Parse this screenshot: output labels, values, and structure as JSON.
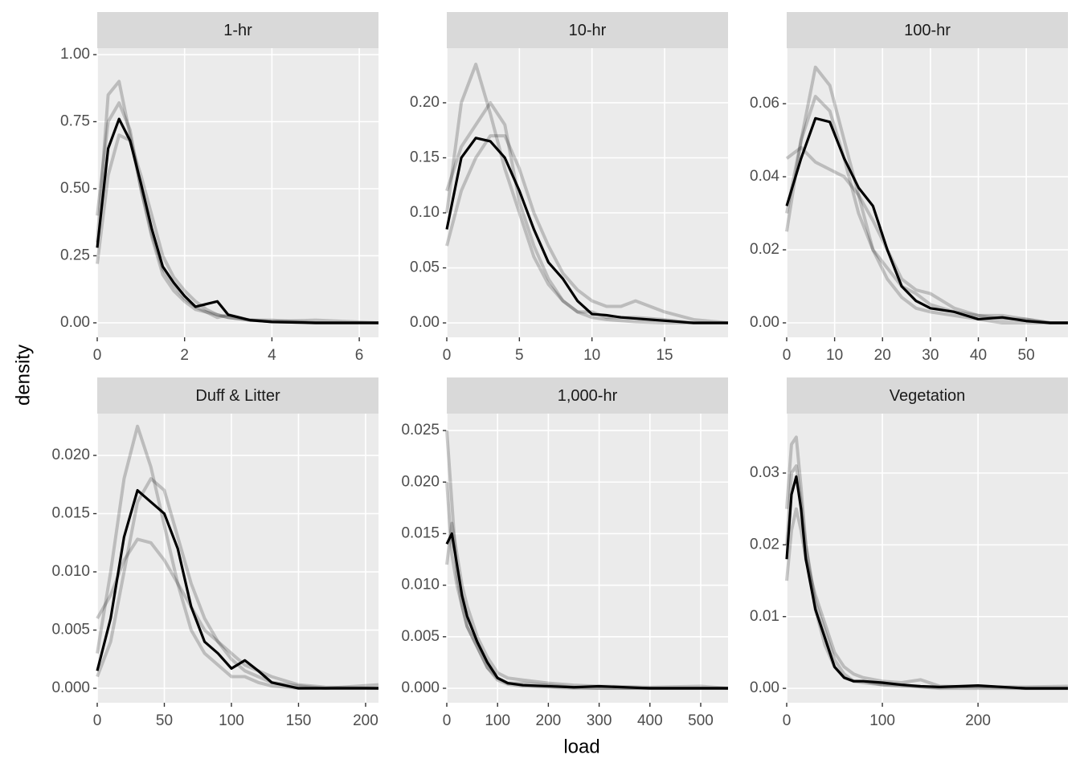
{
  "x_label": "load",
  "y_label": "density",
  "chart_data": [
    {
      "type": "line",
      "title": "1-hr",
      "line_alpha": 0.2,
      "x": [
        0,
        0.25,
        0.5,
        0.75,
        1,
        1.25,
        1.5,
        1.75,
        2,
        2.25,
        2.5,
        2.75,
        3,
        3.5,
        4,
        5,
        6.44
      ],
      "series": [
        {
          "color": "#000000",
          "values": [
            0.3,
            0.85,
            0.9,
            0.7,
            0.5,
            0.33,
            0.2,
            0.14,
            0.09,
            0.06,
            0.04,
            0.03,
            0.02,
            0.01,
            0.005,
            0,
            0
          ]
        },
        {
          "color": "#000000",
          "values": [
            0.22,
            0.55,
            0.7,
            0.68,
            0.55,
            0.4,
            0.25,
            0.17,
            0.12,
            0.08,
            0.05,
            0.03,
            0.02,
            0.01,
            0.005,
            0.01,
            0
          ]
        },
        {
          "color": "#000000",
          "values": [
            0.4,
            0.75,
            0.82,
            0.72,
            0.5,
            0.32,
            0.18,
            0.12,
            0.08,
            0.05,
            0.04,
            0.02,
            0.03,
            0.01,
            0.01,
            0,
            0
          ]
        },
        {
          "color": "#000000",
          "highlight": true,
          "values": [
            0.28,
            0.65,
            0.76,
            0.68,
            0.52,
            0.35,
            0.21,
            0.15,
            0.1,
            0.06,
            0.07,
            0.08,
            0.03,
            0.01,
            0.003,
            0,
            0
          ]
        }
      ],
      "xlim": [
        0,
        6.44
      ],
      "xticks": [
        0,
        2,
        4,
        6
      ],
      "ylim": [
        -0.054,
        1.024
      ],
      "yticks": [
        {
          "value": 0,
          "label": "0.00"
        },
        {
          "value": 0.25,
          "label": "0.25"
        },
        {
          "value": 0.5,
          "label": "0.50"
        },
        {
          "value": 0.75,
          "label": "0.75"
        },
        {
          "value": 1,
          "label": "1.00"
        }
      ]
    },
    {
      "type": "line",
      "title": "10-hr",
      "line_alpha": 0.2,
      "x": [
        0,
        1,
        2,
        3,
        4,
        5,
        6,
        7,
        8,
        9,
        10,
        11,
        12,
        13,
        15,
        17,
        19.37
      ],
      "series": [
        {
          "color": "#000000",
          "values": [
            0.1,
            0.2,
            0.235,
            0.19,
            0.14,
            0.1,
            0.06,
            0.035,
            0.02,
            0.01,
            0.005,
            0.003,
            0.002,
            0.001,
            0,
            0,
            0
          ]
        },
        {
          "color": "#000000",
          "values": [
            0.07,
            0.12,
            0.15,
            0.17,
            0.17,
            0.14,
            0.1,
            0.07,
            0.045,
            0.03,
            0.02,
            0.015,
            0.015,
            0.02,
            0.01,
            0.003,
            0
          ]
        },
        {
          "color": "#000000",
          "values": [
            0.12,
            0.16,
            0.18,
            0.2,
            0.18,
            0.11,
            0.07,
            0.04,
            0.02,
            0.01,
            0.01,
            0.005,
            0.005,
            0.005,
            0.003,
            0,
            0
          ]
        },
        {
          "color": "#000000",
          "highlight": true,
          "values": [
            0.085,
            0.15,
            0.168,
            0.165,
            0.15,
            0.12,
            0.085,
            0.055,
            0.04,
            0.02,
            0.008,
            0.007,
            0.005,
            0.004,
            0.002,
            0,
            0
          ]
        }
      ],
      "xlim": [
        0,
        19.37
      ],
      "xticks": [
        0,
        5,
        10,
        15
      ],
      "ylim": [
        -0.0131,
        0.2496
      ],
      "yticks": [
        {
          "value": 0,
          "label": "0.00"
        },
        0.05,
        {
          "value": 0.1,
          "label": "0.10"
        },
        0.15,
        {
          "value": 0.2,
          "label": "0.20"
        }
      ]
    },
    {
      "type": "line",
      "title": "100-hr",
      "line_alpha": 0.2,
      "x": [
        0,
        3,
        6,
        9,
        12,
        15,
        18,
        21,
        24,
        27,
        30,
        35,
        40,
        45,
        50,
        55,
        58.7
      ],
      "series": [
        {
          "color": "#000000",
          "values": [
            0.03,
            0.05,
            0.07,
            0.065,
            0.05,
            0.035,
            0.02,
            0.012,
            0.007,
            0.004,
            0.003,
            0.002,
            0.001,
            0,
            0,
            0,
            0
          ]
        },
        {
          "color": "#000000",
          "values": [
            0.045,
            0.048,
            0.044,
            0.042,
            0.04,
            0.035,
            0.028,
            0.02,
            0.012,
            0.009,
            0.008,
            0.004,
            0.002,
            0.002,
            0.001,
            0,
            0
          ]
        },
        {
          "color": "#000000",
          "values": [
            0.025,
            0.05,
            0.062,
            0.058,
            0.045,
            0.03,
            0.02,
            0.015,
            0.01,
            0.008,
            0.005,
            0.003,
            0.002,
            0.001,
            0.001,
            0,
            0
          ]
        },
        {
          "color": "#000000",
          "highlight": true,
          "values": [
            0.032,
            0.045,
            0.056,
            0.055,
            0.045,
            0.037,
            0.032,
            0.02,
            0.01,
            0.006,
            0.004,
            0.003,
            0.001,
            0.0015,
            0.0005,
            0,
            0
          ]
        }
      ],
      "xlim": [
        0,
        58.7
      ],
      "xticks": [
        0,
        10,
        20,
        30,
        40,
        50
      ],
      "ylim": [
        -0.00396,
        0.0752
      ],
      "yticks": [
        {
          "value": 0,
          "label": "0.00"
        },
        {
          "value": 0.02,
          "label": "0.02"
        },
        {
          "value": 0.04,
          "label": "0.04"
        },
        {
          "value": 0.06,
          "label": "0.06"
        }
      ]
    },
    {
      "type": "line",
      "title": "Duff & Litter",
      "line_alpha": 0.2,
      "x": [
        0,
        10,
        20,
        30,
        40,
        50,
        60,
        70,
        80,
        90,
        100,
        110,
        120,
        130,
        150,
        170,
        209.6
      ],
      "series": [
        {
          "color": "#000000",
          "values": [
            0.003,
            0.01,
            0.018,
            0.0225,
            0.019,
            0.014,
            0.009,
            0.005,
            0.003,
            0.002,
            0.001,
            0.001,
            0.0005,
            0.0002,
            0,
            0,
            0
          ]
        },
        {
          "color": "#000000",
          "values": [
            0.006,
            0.008,
            0.011,
            0.0128,
            0.0125,
            0.011,
            0.009,
            0.007,
            0.005,
            0.004,
            0.003,
            0.002,
            0.0015,
            0.001,
            0.0003,
            0.0001,
            0
          ]
        },
        {
          "color": "#000000",
          "values": [
            0.001,
            0.004,
            0.01,
            0.016,
            0.018,
            0.017,
            0.013,
            0.009,
            0.006,
            0.004,
            0.0025,
            0.0015,
            0.001,
            0.0005,
            0.0002,
            0,
            0.0003
          ]
        },
        {
          "color": "#000000",
          "highlight": true,
          "values": [
            0.0015,
            0.006,
            0.013,
            0.017,
            0.016,
            0.015,
            0.012,
            0.007,
            0.004,
            0.003,
            0.0017,
            0.0024,
            0.0015,
            0.0005,
            0,
            0,
            0
          ]
        }
      ],
      "xlim": [
        0,
        209.6
      ],
      "xticks": [
        0,
        50,
        100,
        150,
        200
      ],
      "ylim": [
        -0.00124,
        0.02359
      ],
      "yticks": [
        {
          "value": 0,
          "label": "0.000"
        },
        0.005,
        {
          "value": 0.01,
          "label": "0.010"
        },
        0.015,
        {
          "value": 0.02,
          "label": "0.020"
        }
      ]
    },
    {
      "type": "line",
      "title": "1,000-hr",
      "line_alpha": 0.2,
      "x": [
        0,
        10,
        20,
        30,
        40,
        60,
        80,
        100,
        120,
        150,
        200,
        250,
        300,
        400,
        500,
        553.8
      ],
      "series": [
        {
          "color": "#000000",
          "values": [
            0.025,
            0.018,
            0.011,
            0.008,
            0.006,
            0.004,
            0.002,
            0.0008,
            0.0004,
            0.0002,
            0.0001,
            0,
            0,
            0,
            0,
            0
          ]
        },
        {
          "color": "#000000",
          "values": [
            0.012,
            0.016,
            0.013,
            0.01,
            0.008,
            0.005,
            0.003,
            0.0015,
            0.001,
            0.0008,
            0.0005,
            0.0003,
            0.0002,
            0.0001,
            0.0002,
            0
          ]
        },
        {
          "color": "#000000",
          "values": [
            0.02,
            0.013,
            0.01,
            0.008,
            0.006,
            0.004,
            0.002,
            0.001,
            0.0005,
            0.0005,
            0.0003,
            0.0001,
            0,
            0,
            0,
            0
          ]
        },
        {
          "color": "#000000",
          "highlight": true,
          "values": [
            0.014,
            0.015,
            0.012,
            0.009,
            0.007,
            0.0045,
            0.0025,
            0.001,
            0.0005,
            0.0003,
            0.0002,
            0.0001,
            0.0002,
            0,
            0,
            0
          ]
        }
      ],
      "xlim": [
        0,
        553.8
      ],
      "xticks": [
        0,
        100,
        200,
        300,
        400,
        500
      ],
      "ylim": [
        -0.0014,
        0.02664
      ],
      "yticks": [
        {
          "value": 0,
          "label": "0.000"
        },
        0.005,
        {
          "value": 0.01,
          "label": "0.010"
        },
        0.015,
        {
          "value": 0.02,
          "label": "0.020"
        },
        0.025
      ]
    },
    {
      "type": "line",
      "title": "Vegetation",
      "line_alpha": 0.2,
      "x": [
        0,
        5,
        10,
        15,
        20,
        30,
        40,
        50,
        60,
        70,
        80,
        100,
        120,
        140,
        160,
        200,
        250,
        294
      ],
      "series": [
        {
          "color": "#000000",
          "values": [
            0.025,
            0.034,
            0.035,
            0.028,
            0.02,
            0.011,
            0.006,
            0.003,
            0.0015,
            0.001,
            0.0008,
            0.0005,
            0.0003,
            0.0002,
            0,
            0,
            0,
            0
          ]
        },
        {
          "color": "#000000",
          "values": [
            0.015,
            0.022,
            0.025,
            0.022,
            0.018,
            0.013,
            0.009,
            0.005,
            0.003,
            0.002,
            0.0015,
            0.001,
            0.0008,
            0.0012,
            0.0003,
            0.0002,
            0.0002,
            0.0003
          ]
        },
        {
          "color": "#000000",
          "values": [
            0.02,
            0.03,
            0.031,
            0.026,
            0.02,
            0.012,
            0.008,
            0.004,
            0.002,
            0.001,
            0.001,
            0.0005,
            0.0005,
            0.0002,
            0.0001,
            0.0003,
            0,
            0
          ]
        },
        {
          "color": "#000000",
          "highlight": true,
          "values": [
            0.018,
            0.027,
            0.0295,
            0.025,
            0.018,
            0.011,
            0.007,
            0.003,
            0.0015,
            0.001,
            0.001,
            0.0008,
            0.0005,
            0.0003,
            0.0002,
            0.0004,
            0,
            0
          ]
        }
      ],
      "xlim": [
        0,
        294
      ],
      "xticks": [
        0,
        100,
        200
      ],
      "ylim": [
        -0.002,
        0.03828
      ],
      "yticks": [
        {
          "value": 0,
          "label": "0.00"
        },
        {
          "value": 0.01,
          "label": "0.01"
        },
        {
          "value": 0.02,
          "label": "0.02"
        },
        {
          "value": 0.03,
          "label": "0.03"
        }
      ]
    }
  ]
}
